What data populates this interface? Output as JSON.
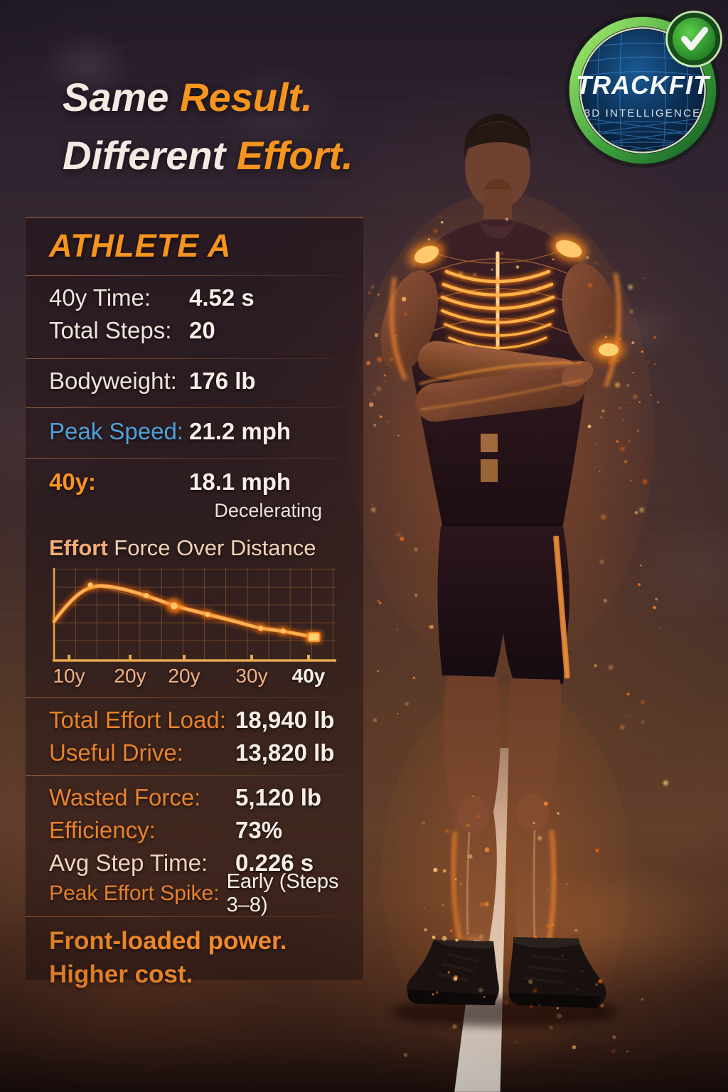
{
  "headline": {
    "line1_white": "Same ",
    "line1_orange": "Result.",
    "line2_white": "Different ",
    "line2_orange": "Effort."
  },
  "badge": {
    "brand": "TRACKFIT",
    "subtitle": "3D INTELLIGENCE",
    "check_icon": "checkmark",
    "ring_color": "#53B848"
  },
  "panel": {
    "header": "ATHLETE A",
    "rows_top": [
      {
        "label": "40y Time:",
        "value": "4.52 s"
      },
      {
        "label": "Total Steps:",
        "value": "20"
      }
    ],
    "bodyweight": {
      "label": "Bodyweight:",
      "value": "176 lb"
    },
    "peak_speed": {
      "label": "Peak Speed:",
      "value": "21.2 mph"
    },
    "forty": {
      "label": "40y:",
      "value": "18.1 mph",
      "note": "Decelerating"
    },
    "stats": [
      {
        "label": "Total Effort Load:",
        "value": "18,940 lb"
      },
      {
        "label": "Useful Drive:",
        "value": "13,820 lb"
      },
      {
        "label": "Wasted Force:",
        "value": "5,120 lb"
      },
      {
        "label": "Efficiency:",
        "value": "73%"
      },
      {
        "label": "Avg Step Time:",
        "value": "0.226 s"
      },
      {
        "label": "Peak Effort Spike:",
        "value": "Early (Steps 3–8)"
      }
    ],
    "footnote_line1": "Front-loaded power.",
    "footnote_line2": "Higher cost."
  },
  "chart_data": {
    "type": "line",
    "title_bold": "Effort",
    "title_rest": " Force Over Distance",
    "x_tick_labels": [
      "10y",
      "20y",
      "20y",
      "30y",
      "40y"
    ],
    "ylabel": "",
    "grid": true,
    "line_color": "#FF8A1E",
    "series": [
      {
        "name": "Effort Force",
        "points_pct": [
          [
            0,
            60
          ],
          [
            5,
            38
          ],
          [
            13,
            18
          ],
          [
            22,
            20
          ],
          [
            33,
            30
          ],
          [
            43,
            42
          ],
          [
            55,
            52
          ],
          [
            65,
            60
          ],
          [
            74,
            68
          ],
          [
            82,
            71
          ],
          [
            93,
            78
          ]
        ],
        "marker_indices": [
          2,
          4,
          5,
          6,
          8,
          9
        ],
        "end_marker": "square"
      }
    ],
    "reading": "Force rises sharply to a peak near 10y then steadily declines through 40y (front-loaded effort, decelerating)"
  },
  "colors": {
    "accent_orange": "#F5941E",
    "label_orange": "#E8822A",
    "accent_blue": "#4FA0D8",
    "text_white": "#F3EAE3",
    "peach": "#F0D3BC",
    "badge_green": "#53B848",
    "chart_line": "#FF8A1E"
  }
}
